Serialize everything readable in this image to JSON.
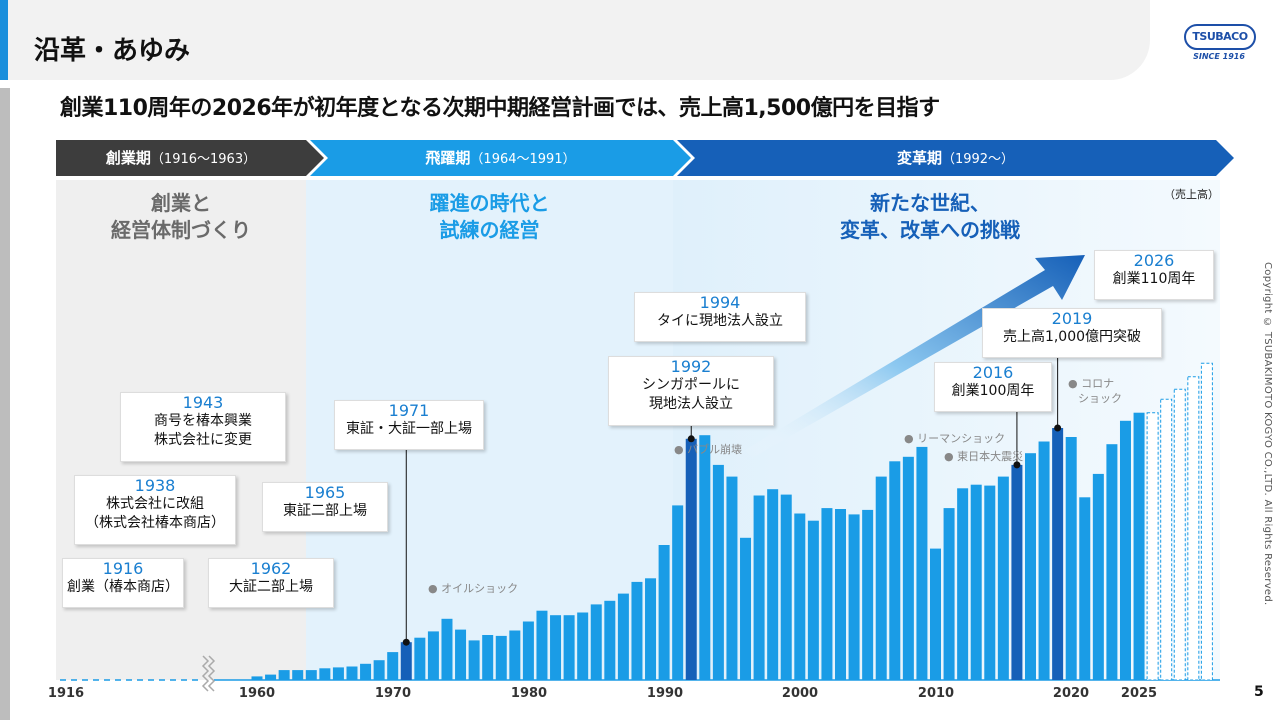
{
  "page": {
    "title": "沿革・あゆみ",
    "headline": "創業110周年の2026年が初年度となる次期中期経営計画では、売上高1,500億円を目指す",
    "logo": {
      "name": "TSUBACO",
      "since": "SINCE 1916"
    },
    "copyright": "Copyright © TSUBAKIMOTO KOGYO CO.,LTD. All Rights Reserved.",
    "page_number": "5",
    "unit": "（売上高）",
    "colors": {
      "era1": "#3d3d3d",
      "era2": "#1a9ce6",
      "era3": "#1660b8",
      "bar": "#1a9ce6",
      "bar_highlight": "#1660b8"
    }
  },
  "eras": [
    {
      "name": "創業期",
      "period": "（1916〜1963）",
      "title_lines": [
        "創業と",
        "経営体制づくり"
      ]
    },
    {
      "name": "飛躍期",
      "period": "（1964〜1991）",
      "title_lines": [
        "躍進の時代と",
        "試練の経営"
      ]
    },
    {
      "name": "変革期",
      "period": "（1992〜）",
      "title_lines": [
        "新たな世紀、",
        "変革、改革への挑戦"
      ]
    }
  ],
  "milestones": [
    {
      "year": "1916",
      "lines": [
        "創業（椿本商店）"
      ]
    },
    {
      "year": "1938",
      "lines": [
        "株式会社に改組",
        "（株式会社椿本商店）"
      ]
    },
    {
      "year": "1943",
      "lines": [
        "商号を椿本興業",
        "株式会社に変更"
      ]
    },
    {
      "year": "1962",
      "lines": [
        "大証二部上場"
      ]
    },
    {
      "year": "1965",
      "lines": [
        "東証二部上場"
      ]
    },
    {
      "year": "1971",
      "lines": [
        "東証・大証一部上場"
      ]
    },
    {
      "year": "1992",
      "lines": [
        "シンガポールに",
        "現地法人設立"
      ]
    },
    {
      "year": "1994",
      "lines": [
        "タイに現地法人設立"
      ]
    },
    {
      "year": "2016",
      "lines": [
        "創業100周年"
      ]
    },
    {
      "year": "2019",
      "lines": [
        "売上高1,000億円突破"
      ]
    },
    {
      "year": "2026",
      "lines": [
        "創業110周年"
      ]
    }
  ],
  "events": [
    {
      "label": "オイルショック"
    },
    {
      "label": "バブル崩壊"
    },
    {
      "label": "リーマンショック"
    },
    {
      "label": "東日本大震災"
    },
    {
      "label": "コロナ",
      "label2": "ショック"
    }
  ],
  "chart_data": {
    "type": "bar",
    "ylabel": "（売上高）",
    "x_ticks": [
      "1916",
      "1960",
      "1970",
      "1980",
      "1990",
      "2000",
      "2010",
      "2020",
      "2025"
    ],
    "x": [
      1960,
      1961,
      1962,
      1963,
      1964,
      1965,
      1966,
      1967,
      1968,
      1969,
      1970,
      1971,
      1972,
      1973,
      1974,
      1975,
      1976,
      1977,
      1978,
      1979,
      1980,
      1981,
      1982,
      1983,
      1984,
      1985,
      1986,
      1987,
      1988,
      1989,
      1990,
      1991,
      1992,
      1993,
      1994,
      1995,
      1996,
      1997,
      1998,
      1999,
      2000,
      2001,
      2002,
      2003,
      2004,
      2005,
      2006,
      2007,
      2008,
      2009,
      2010,
      2011,
      2012,
      2013,
      2014,
      2015,
      2016,
      2017,
      2018,
      2019,
      2020,
      2021,
      2022,
      2023,
      2024,
      2025,
      2026,
      2027,
      2028,
      2029,
      2030
    ],
    "values": [
      4,
      6,
      11,
      11,
      11,
      13,
      14,
      15,
      18,
      22,
      31,
      42,
      47,
      54,
      68,
      56,
      44,
      50,
      49,
      55,
      65,
      77,
      72,
      72,
      75,
      84,
      88,
      96,
      109,
      113,
      150,
      194,
      268,
      272,
      239,
      226,
      158,
      205,
      212,
      206,
      185,
      177,
      191,
      190,
      184,
      189,
      226,
      243,
      248,
      259,
      146,
      191,
      213,
      217,
      216,
      226,
      239,
      252,
      265,
      280,
      270,
      203,
      229,
      262,
      288,
      297,
      0,
      0,
      0,
      0,
      0
    ],
    "plan_values": [
      297,
      312,
      323,
      337,
      352
    ],
    "plan_years": [
      2026,
      2027,
      2028,
      2029,
      2030
    ],
    "highlight_years": [
      1971,
      1992,
      2016,
      2019
    ]
  }
}
